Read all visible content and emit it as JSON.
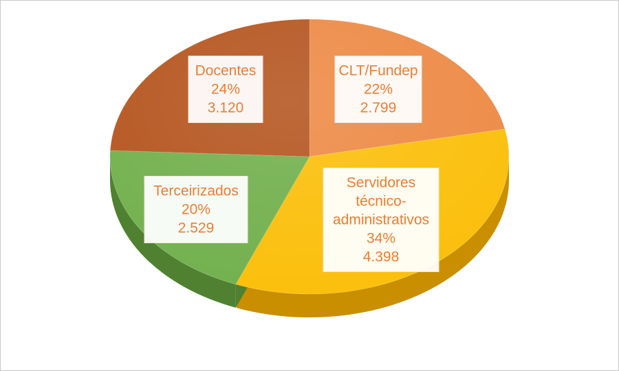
{
  "chart_data": {
    "type": "pie",
    "title": "",
    "slices": [
      {
        "name": "CLT/Fundep",
        "value": 2799,
        "percent": "22%",
        "value_label": "2.799",
        "color": "#ed8a45",
        "side_color": "#b85f1f",
        "label_lines": [
          "CLT/Fundep"
        ]
      },
      {
        "name": "Servidores técnico-administrativos",
        "value": 4398,
        "percent": "34%",
        "value_label": "4.398",
        "color": "#fbbf0b",
        "side_color": "#c98f00",
        "label_lines": [
          "Servidores",
          "técnico-",
          "administrativos"
        ]
      },
      {
        "name": "Terceirizados",
        "value": 2529,
        "percent": "20%",
        "value_label": "2.529",
        "color": "#72b04d",
        "side_color": "#4f8131",
        "label_lines": [
          "Terceirizados"
        ]
      },
      {
        "name": "Docentes",
        "value": 3120,
        "percent": "24%",
        "value_label": "3.120",
        "color": "#b5551f",
        "side_color": "#84390f",
        "label_lines": [
          "Docentes"
        ]
      }
    ]
  }
}
